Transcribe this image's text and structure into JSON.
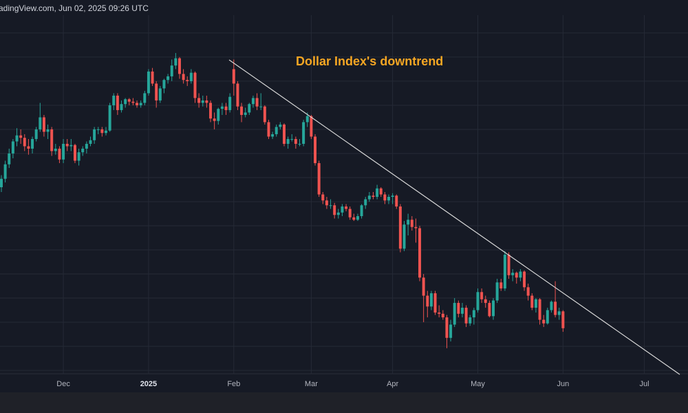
{
  "chart_data": {
    "type": "candlestick",
    "header": "adingView.com, Jun 02, 2025 09:26 UTC",
    "annotation": "Dollar Index's downtrend",
    "up_color": "#26a69a",
    "down_color": "#ef5350",
    "grid": true,
    "ylim": [
      96.86,
      111.74
    ],
    "ygrid": [
      97,
      98,
      99,
      100,
      101,
      102,
      103,
      104,
      105,
      106,
      107,
      108,
      109,
      110,
      111
    ],
    "categories": [
      null,
      null,
      null,
      null,
      null,
      null,
      null,
      null,
      null,
      null,
      null,
      null,
      null,
      null,
      null,
      null,
      "Dec",
      null,
      null,
      null,
      null,
      null,
      null,
      null,
      null,
      null,
      null,
      null,
      null,
      null,
      null,
      null,
      null,
      null,
      null,
      null,
      null,
      null,
      "2025",
      null,
      null,
      null,
      null,
      null,
      null,
      null,
      null,
      null,
      null,
      null,
      null,
      null,
      null,
      null,
      null,
      null,
      null,
      null,
      null,
      null,
      "Feb",
      null,
      null,
      null,
      null,
      null,
      null,
      null,
      null,
      null,
      null,
      null,
      null,
      null,
      null,
      null,
      null,
      null,
      null,
      null,
      "Mar",
      null,
      null,
      null,
      null,
      null,
      null,
      null,
      null,
      null,
      null,
      null,
      null,
      null,
      null,
      null,
      null,
      null,
      null,
      null,
      null,
      "Apr",
      null,
      null,
      null,
      null,
      null,
      null,
      null,
      null,
      null,
      null,
      null,
      null,
      null,
      null,
      null,
      null,
      null,
      null,
      null,
      null,
      null,
      "May",
      null,
      null,
      null,
      null,
      null,
      null,
      null,
      null,
      null,
      null,
      null,
      null,
      null,
      null,
      null,
      null,
      null,
      null,
      null,
      null,
      null,
      "Jun",
      null,
      null,
      null,
      null,
      null,
      null,
      null,
      null,
      null,
      null,
      null,
      null,
      null,
      null,
      null,
      null,
      null,
      null,
      null,
      null,
      "Jul",
      null,
      null,
      null,
      null,
      null,
      null,
      null,
      null
    ],
    "ohlc": [
      [
        104.6,
        105.1,
        104.4,
        104.95
      ],
      [
        104.95,
        105.7,
        104.8,
        105.55
      ],
      [
        105.55,
        106.2,
        105.4,
        106.0
      ],
      [
        106.0,
        106.6,
        105.8,
        106.5
      ],
      [
        106.5,
        107.05,
        106.3,
        106.75
      ],
      [
        106.75,
        107.0,
        106.4,
        106.65
      ],
      [
        106.65,
        106.8,
        106.1,
        106.3
      ],
      [
        106.3,
        106.6,
        105.95,
        106.2
      ],
      [
        106.2,
        106.7,
        106.0,
        106.6
      ],
      [
        106.6,
        107.1,
        106.5,
        107.0
      ],
      [
        107.0,
        108.1,
        106.9,
        107.5
      ],
      [
        107.5,
        107.6,
        106.7,
        106.9
      ],
      [
        106.9,
        107.2,
        106.6,
        107.0
      ],
      [
        107.0,
        107.1,
        105.9,
        106.1
      ],
      [
        106.1,
        106.4,
        105.95,
        106.2
      ],
      [
        106.2,
        106.3,
        105.6,
        105.75
      ],
      [
        105.75,
        106.6,
        105.6,
        106.4
      ],
      [
        106.4,
        106.6,
        106.1,
        106.3
      ],
      [
        106.3,
        106.6,
        106.1,
        106.35
      ],
      [
        106.35,
        106.4,
        105.6,
        105.7
      ],
      [
        105.7,
        106.2,
        105.5,
        106.05
      ],
      [
        106.05,
        106.3,
        105.9,
        106.2
      ],
      [
        106.2,
        106.5,
        106.0,
        106.4
      ],
      [
        106.4,
        106.7,
        106.3,
        106.55
      ],
      [
        106.55,
        107.1,
        106.4,
        107.0
      ],
      [
        107.0,
        107.1,
        106.8,
        107.0
      ],
      [
        107.0,
        107.1,
        106.7,
        106.85
      ],
      [
        106.85,
        107.1,
        106.75,
        106.95
      ],
      [
        106.95,
        108.1,
        106.9,
        108.0
      ],
      [
        108.0,
        108.5,
        107.8,
        108.4
      ],
      [
        108.4,
        108.5,
        107.6,
        107.8
      ],
      [
        107.8,
        108.2,
        107.7,
        108.05
      ],
      [
        108.05,
        108.3,
        107.9,
        108.25
      ],
      [
        108.25,
        108.3,
        108.0,
        108.15
      ],
      [
        108.15,
        108.3,
        108.0,
        108.1
      ],
      [
        108.1,
        108.2,
        107.9,
        108.0
      ],
      [
        108.0,
        108.2,
        107.9,
        108.1
      ],
      [
        108.1,
        108.6,
        108.0,
        108.5
      ],
      [
        108.5,
        109.5,
        108.4,
        109.4
      ],
      [
        109.4,
        109.55,
        108.8,
        108.9
      ],
      [
        108.9,
        109.0,
        107.9,
        108.2
      ],
      [
        108.2,
        108.8,
        108.1,
        108.7
      ],
      [
        108.7,
        109.1,
        108.5,
        109.05
      ],
      [
        109.05,
        109.3,
        108.9,
        109.2
      ],
      [
        109.2,
        109.9,
        109.0,
        109.65
      ],
      [
        109.65,
        110.17,
        109.5,
        109.95
      ],
      [
        109.95,
        110.0,
        109.1,
        109.3
      ],
      [
        109.3,
        109.5,
        108.9,
        109.05
      ],
      [
        109.05,
        109.2,
        108.8,
        109.0
      ],
      [
        109.0,
        109.5,
        108.9,
        109.35
      ],
      [
        109.35,
        109.4,
        108.1,
        108.3
      ],
      [
        108.3,
        108.5,
        107.9,
        108.1
      ],
      [
        108.1,
        108.4,
        107.95,
        108.2
      ],
      [
        108.2,
        108.4,
        107.9,
        108.1
      ],
      [
        108.1,
        108.2,
        107.3,
        107.45
      ],
      [
        107.45,
        107.7,
        107.0,
        107.35
      ],
      [
        107.35,
        107.9,
        107.2,
        107.85
      ],
      [
        107.85,
        108.1,
        107.6,
        107.95
      ],
      [
        107.95,
        108.1,
        107.6,
        107.8
      ],
      [
        107.8,
        108.5,
        107.7,
        108.35
      ],
      [
        109.5,
        109.9,
        108.4,
        108.9
      ],
      [
        108.9,
        109.0,
        107.8,
        107.95
      ],
      [
        107.95,
        108.1,
        107.3,
        107.6
      ],
      [
        107.6,
        107.9,
        107.5,
        107.7
      ],
      [
        107.7,
        108.1,
        107.6,
        108.05
      ],
      [
        108.05,
        108.4,
        107.9,
        108.3
      ],
      [
        108.3,
        108.5,
        107.8,
        107.95
      ],
      [
        107.95,
        108.5,
        107.8,
        107.95
      ],
      [
        107.95,
        108.0,
        107.2,
        107.3
      ],
      [
        107.3,
        107.4,
        106.6,
        106.7
      ],
      [
        106.7,
        106.9,
        106.6,
        106.8
      ],
      [
        106.8,
        107.2,
        106.7,
        107.1
      ],
      [
        107.1,
        107.3,
        107.0,
        107.2
      ],
      [
        107.2,
        107.25,
        106.3,
        106.4
      ],
      [
        106.4,
        106.7,
        106.2,
        106.6
      ],
      [
        106.6,
        106.8,
        106.5,
        106.6
      ],
      [
        106.6,
        106.7,
        106.2,
        106.4
      ],
      [
        106.4,
        106.6,
        106.3,
        106.4
      ],
      [
        106.4,
        107.4,
        106.3,
        107.3
      ],
      [
        107.3,
        107.7,
        107.1,
        107.55
      ],
      [
        107.55,
        107.6,
        106.6,
        106.7
      ],
      [
        106.7,
        106.8,
        105.5,
        105.6
      ],
      [
        105.6,
        105.7,
        104.2,
        104.3
      ],
      [
        104.3,
        104.4,
        103.9,
        104.05
      ],
      [
        104.05,
        104.2,
        103.7,
        103.85
      ],
      [
        103.85,
        104.1,
        103.7,
        103.85
      ],
      [
        103.85,
        103.95,
        103.3,
        103.45
      ],
      [
        103.45,
        103.7,
        103.3,
        103.55
      ],
      [
        103.55,
        103.9,
        103.4,
        103.8
      ],
      [
        103.8,
        103.9,
        103.6,
        103.7
      ],
      [
        103.7,
        103.8,
        103.25,
        103.35
      ],
      [
        103.35,
        103.5,
        103.2,
        103.25
      ],
      [
        103.25,
        103.5,
        103.2,
        103.4
      ],
      [
        103.4,
        103.9,
        103.3,
        103.85
      ],
      [
        103.85,
        104.2,
        103.7,
        104.1
      ],
      [
        104.1,
        104.4,
        104.0,
        104.25
      ],
      [
        104.25,
        104.4,
        104.1,
        104.2
      ],
      [
        104.2,
        104.7,
        104.1,
        104.55
      ],
      [
        104.55,
        104.6,
        104.2,
        104.3
      ],
      [
        104.3,
        104.4,
        103.9,
        104.05
      ],
      [
        104.05,
        104.3,
        103.9,
        104.2
      ],
      [
        104.2,
        104.35,
        103.9,
        104.25
      ],
      [
        104.25,
        104.3,
        103.7,
        103.8
      ],
      [
        103.8,
        103.9,
        101.9,
        102.05
      ],
      [
        102.05,
        103.2,
        101.95,
        103.05
      ],
      [
        103.05,
        103.5,
        102.6,
        103.25
      ],
      [
        103.25,
        103.4,
        102.8,
        102.95
      ],
      [
        102.95,
        103.3,
        102.3,
        102.9
      ],
      [
        102.9,
        103.0,
        100.7,
        100.85
      ],
      [
        100.85,
        101.0,
        99.0,
        100.1
      ],
      [
        100.1,
        100.3,
        99.2,
        99.65
      ],
      [
        99.65,
        100.3,
        99.5,
        100.2
      ],
      [
        100.2,
        100.3,
        99.3,
        99.4
      ],
      [
        99.4,
        99.7,
        99.2,
        99.35
      ],
      [
        99.35,
        99.5,
        99.1,
        99.2
      ],
      [
        99.2,
        99.3,
        97.92,
        98.35
      ],
      [
        98.35,
        99.1,
        98.2,
        98.9
      ],
      [
        98.9,
        100.0,
        98.8,
        99.8
      ],
      [
        99.8,
        99.9,
        99.2,
        99.35
      ],
      [
        99.35,
        99.8,
        99.2,
        99.6
      ],
      [
        99.6,
        99.7,
        98.8,
        98.95
      ],
      [
        98.95,
        99.3,
        98.85,
        99.2
      ],
      [
        99.2,
        99.6,
        98.9,
        99.5
      ],
      [
        99.5,
        100.4,
        99.4,
        100.25
      ],
      [
        100.25,
        100.4,
        99.8,
        99.95
      ],
      [
        99.95,
        100.1,
        99.6,
        99.8
      ],
      [
        99.8,
        99.9,
        99.2,
        99.25
      ],
      [
        99.25,
        100.0,
        99.1,
        99.9
      ],
      [
        99.9,
        100.8,
        99.8,
        100.65
      ],
      [
        100.65,
        100.8,
        100.3,
        100.4
      ],
      [
        100.4,
        101.95,
        100.3,
        101.8
      ],
      [
        101.8,
        101.9,
        100.8,
        100.95
      ],
      [
        100.95,
        101.2,
        100.7,
        101.05
      ],
      [
        101.05,
        101.1,
        100.6,
        100.85
      ],
      [
        100.85,
        101.2,
        100.7,
        101.1
      ],
      [
        101.1,
        101.15,
        100.3,
        100.45
      ],
      [
        100.45,
        100.6,
        99.9,
        100.1
      ],
      [
        100.1,
        100.2,
        99.5,
        99.6
      ],
      [
        99.6,
        100.0,
        99.4,
        99.95
      ],
      [
        99.95,
        100.0,
        98.9,
        99.1
      ],
      [
        99.1,
        99.3,
        98.8,
        98.95
      ],
      [
        98.95,
        99.6,
        98.9,
        99.5
      ],
      [
        99.5,
        99.9,
        99.4,
        99.85
      ],
      [
        99.85,
        100.7,
        99.2,
        99.3
      ],
      [
        99.3,
        99.6,
        99.1,
        99.45
      ],
      [
        99.45,
        99.5,
        98.6,
        98.75
      ],
      null,
      null,
      null,
      null,
      null,
      null,
      null,
      null,
      null,
      null,
      null,
      null,
      null,
      null,
      null,
      null,
      null,
      null,
      null,
      null,
      null,
      null,
      null,
      null,
      null,
      null,
      null,
      null,
      null
    ]
  }
}
